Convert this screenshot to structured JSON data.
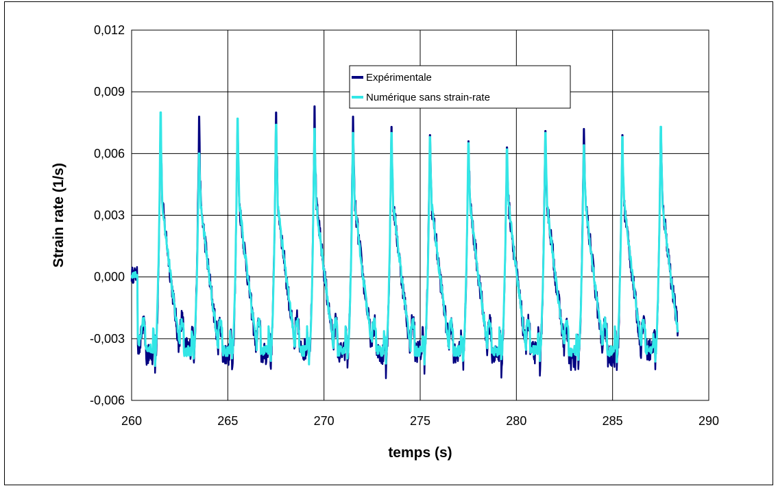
{
  "chart_data": {
    "type": "line",
    "title": "",
    "xlabel": "temps (s)",
    "ylabel": "Strain rate (1/s)",
    "xlim": [
      260,
      290
    ],
    "ylim": [
      -0.006,
      0.012
    ],
    "x_ticks": [
      260,
      265,
      270,
      275,
      280,
      285,
      290
    ],
    "x_tick_labels": [
      "260",
      "265",
      "270",
      "275",
      "280",
      "285",
      "290"
    ],
    "y_ticks": [
      -0.006,
      -0.003,
      0.0,
      0.003,
      0.006,
      0.009,
      0.012
    ],
    "y_tick_labels": [
      "-0,006",
      "-0,003",
      "0,000",
      "0,003",
      "0,006",
      "0,009",
      "0,012"
    ],
    "grid": true,
    "legend_position": "top-center",
    "x_range_of_data": [
      260,
      288.4
    ],
    "cycle_period_s": 2.0,
    "series": [
      {
        "name": "Expérimentale",
        "color": "#000080",
        "peak_times": [
          261.5,
          263.5,
          265.5,
          267.5,
          269.5,
          271.5,
          273.5,
          275.5,
          277.5,
          279.5,
          281.5,
          283.5,
          285.5,
          287.5
        ],
        "peak_values": [
          0.0075,
          0.0078,
          0.0074,
          0.008,
          0.0083,
          0.0078,
          0.0073,
          0.0069,
          0.0066,
          0.0063,
          0.0071,
          0.0072,
          0.0069,
          0.0073
        ],
        "trough_values": [
          -0.0048,
          -0.0043,
          -0.0047,
          -0.0047,
          -0.0044,
          -0.0046,
          -0.0047,
          -0.0045,
          -0.0046,
          -0.0047,
          -0.0046,
          -0.005,
          -0.0048,
          -0.0044
        ]
      },
      {
        "name": "Numérique sans strain-rate",
        "color": "#33E6E6",
        "peak_times": [
          261.5,
          263.5,
          265.5,
          267.5,
          269.5,
          271.5,
          273.5,
          275.5,
          277.5,
          279.5,
          281.5,
          283.5,
          285.5,
          287.5
        ],
        "peak_values": [
          0.008,
          0.006,
          0.0077,
          0.0074,
          0.0072,
          0.007,
          0.007,
          0.0068,
          0.0065,
          0.0062,
          0.007,
          0.0064,
          0.0068,
          0.0073
        ],
        "trough_values": [
          -0.0044,
          -0.0045,
          -0.0045,
          -0.0045,
          -0.0045,
          -0.0045,
          -0.0045,
          -0.0045,
          -0.0045,
          -0.0045,
          -0.0045,
          -0.0045,
          -0.0045,
          -0.0045
        ]
      }
    ]
  }
}
